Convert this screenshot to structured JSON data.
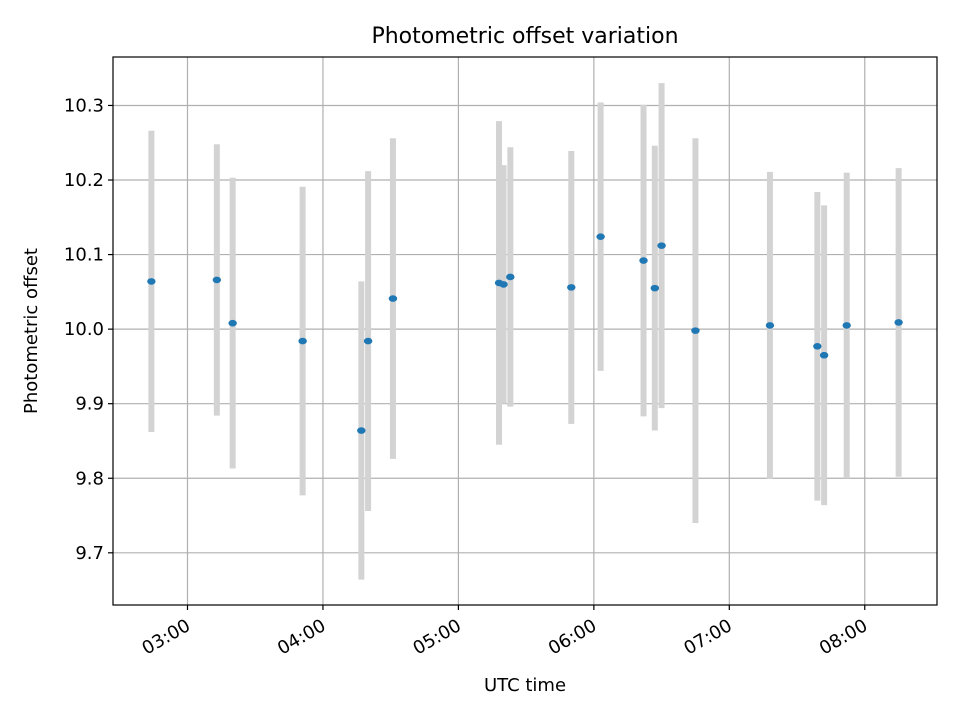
{
  "chart_data": {
    "type": "scatter",
    "title": "Photometric offset variation",
    "xlabel": "UTC time",
    "ylabel": "Photometric offset",
    "x_is_time": true,
    "xlim": [
      "02:27",
      "08:32"
    ],
    "ylim": [
      9.63,
      10.365
    ],
    "x_ticks": [
      "03:00",
      "04:00",
      "05:00",
      "06:00",
      "07:00",
      "08:00"
    ],
    "y_ticks": [
      "9.7",
      "9.8",
      "9.9",
      "10.0",
      "10.1",
      "10.2",
      "10.3"
    ],
    "grid": true,
    "marker_color": "#1f77b4",
    "errorbar_color": "#d3d3d3",
    "points": [
      {
        "x": "02:44",
        "y": 10.064,
        "err": 0.202
      },
      {
        "x": "03:13",
        "y": 10.066,
        "err": 0.182
      },
      {
        "x": "03:20",
        "y": 10.008,
        "err": 0.195
      },
      {
        "x": "03:51",
        "y": 9.984,
        "err": 0.207
      },
      {
        "x": "04:17",
        "y": 9.864,
        "err": 0.2
      },
      {
        "x": "04:20",
        "y": 9.984,
        "err": 0.228
      },
      {
        "x": "04:31",
        "y": 10.041,
        "err": 0.215
      },
      {
        "x": "05:18",
        "y": 10.062,
        "err": 0.217
      },
      {
        "x": "05:20",
        "y": 10.06,
        "err": 0.16
      },
      {
        "x": "05:23",
        "y": 10.07,
        "err": 0.174
      },
      {
        "x": "05:50",
        "y": 10.056,
        "err": 0.183
      },
      {
        "x": "06:03",
        "y": 10.124,
        "err": 0.18
      },
      {
        "x": "06:22",
        "y": 10.092,
        "err": 0.209
      },
      {
        "x": "06:27",
        "y": 10.055,
        "err": 0.191
      },
      {
        "x": "06:30",
        "y": 10.112,
        "err": 0.218
      },
      {
        "x": "06:45",
        "y": 9.998,
        "err": 0.258
      },
      {
        "x": "07:18",
        "y": 10.005,
        "err": 0.206
      },
      {
        "x": "07:39",
        "y": 9.977,
        "err": 0.207
      },
      {
        "x": "07:42",
        "y": 9.965,
        "err": 0.201
      },
      {
        "x": "07:52",
        "y": 10.005,
        "err": 0.205
      },
      {
        "x": "08:15",
        "y": 10.009,
        "err": 0.207
      }
    ]
  }
}
